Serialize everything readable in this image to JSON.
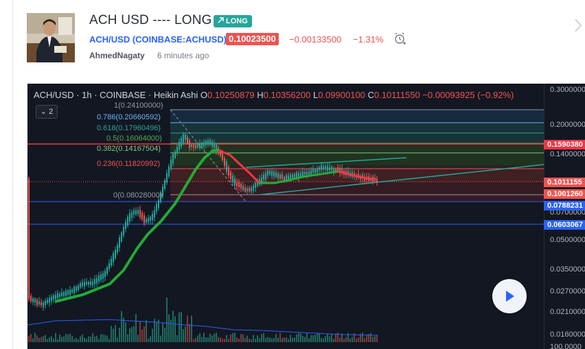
{
  "idea": {
    "title": "ACH USD ---- LONG",
    "badge": "LONG",
    "symbol": "ACH/USD (COINBASE:ACHUSD)",
    "price": "0.10023500",
    "change": "−0.00133500",
    "change_pct": "−1.31%",
    "author": "AhmedNagaty",
    "time_ago": "6 minutes ago"
  },
  "chart": {
    "symbol": "ACH/USD",
    "interval": "1h",
    "exchange": "COINBASE",
    "style": "Heikin Ashi",
    "ohlc_label_o": "O",
    "ohlc_o": "0.10250879",
    "ohlc_label_h": "H",
    "ohlc_h": "0.10356200",
    "ohlc_label_l": "L",
    "ohlc_l": "0.09900100",
    "ohlc_label_c": "C",
    "ohlc_c": "0.10111550",
    "ohlc_change": "−0.00093925 (−0.92%)",
    "indicator_count": "2",
    "fib_levels": [
      {
        "label": "1(0.24100000)",
        "color": "#9598a1"
      },
      {
        "label": "0.786(0.20660592)",
        "color": "#64b5f6"
      },
      {
        "label": "0.618(0.17960496)",
        "color": "#26a69a"
      },
      {
        "label": "0.5(0.16064000)",
        "color": "#4caf50"
      },
      {
        "label": "0.382(0.14167504)",
        "color": "#81c784"
      },
      {
        "label": "0.236(0.11820992)",
        "color": "#ef5350"
      },
      {
        "label": "0(0.08028000)",
        "color": "#9598a1"
      }
    ],
    "axis_ticks": [
      "0.3000000",
      "0.2000000",
      "0.1400000",
      "0.0700000",
      "0.0500000",
      "0.0350000",
      "0.0270000",
      "0.0210000",
      "0.0160000",
      "100.0000"
    ],
    "price_tags": [
      {
        "label": "0.1590380",
        "color": "#f23645"
      },
      {
        "label": "0.1011155",
        "color": "#ef5350"
      },
      {
        "label": "0.1001260",
        "color": "#ef5350"
      },
      {
        "label": "0.0788231",
        "color": "#2962ff"
      },
      {
        "label": "0.0603067",
        "color": "#2962ff"
      }
    ],
    "colors": {
      "up": "#26a69a",
      "down": "#ef5350",
      "ma": "#22ab37",
      "background": "#131722"
    }
  }
}
